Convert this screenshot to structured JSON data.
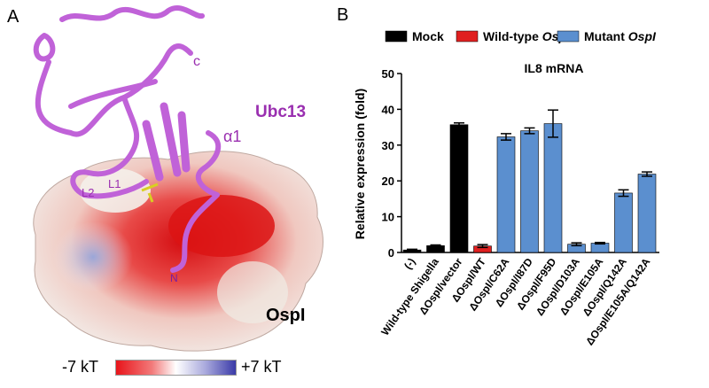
{
  "panel_a": {
    "letter": "A",
    "protein_label": "Ubc13",
    "surface_label": "OspI",
    "helix_label": "α1",
    "c_label": "c",
    "n_label": "N",
    "loop1_label": "L1",
    "loop2_label": "L2",
    "scale_min": "-7 kT",
    "scale_max": "+7 kT",
    "colors": {
      "ribbon": "#c062d8",
      "label": "#9a2fb0",
      "negative": "#e8141a",
      "positive": "#3a3aa8",
      "neutral": "#f2ece8"
    }
  },
  "panel_b": {
    "letter": "B",
    "legend": [
      {
        "label": "Mock",
        "italic": "",
        "color": "#000000"
      },
      {
        "label": "Wild-type ",
        "italic": "OspI",
        "color": "#e02020"
      },
      {
        "label": "Mutant ",
        "italic": "OspI",
        "color": "#5b8fcf"
      }
    ]
  },
  "chart_data": {
    "type": "bar",
    "title": "IL8 mRNA",
    "ylabel": "Relative expression (fold)",
    "xlabel": "",
    "ylim": [
      0,
      50
    ],
    "yticks": [
      0,
      10,
      20,
      30,
      40,
      50
    ],
    "categories": [
      "(-)",
      "Wild-type Shigella",
      "ΔOspI/vector",
      "ΔOspI/WT",
      "ΔOspI/C62A",
      "ΔOspI/I87D",
      "ΔOspI/F95D",
      "ΔOspI/D103A",
      "ΔOspI/E105A",
      "ΔOspI/Q142A",
      "ΔOspI/E105A/Q142A"
    ],
    "values": [
      0.7,
      1.9,
      35.7,
      1.8,
      32.3,
      34.0,
      36.0,
      2.3,
      2.6,
      16.6,
      21.9
    ],
    "errors": [
      0.2,
      0.2,
      0.5,
      0.4,
      0.9,
      0.8,
      3.8,
      0.4,
      0.2,
      0.9,
      0.6
    ],
    "groups": [
      "none",
      "none",
      "mock",
      "wildtype",
      "mutant",
      "mutant",
      "mutant",
      "mutant",
      "mutant",
      "mutant",
      "mutant"
    ],
    "group_colors": {
      "none": "#000000",
      "mock": "#000000",
      "wildtype": "#e02020",
      "mutant": "#5b8fcf"
    },
    "grid": false,
    "legend_position": "top"
  }
}
